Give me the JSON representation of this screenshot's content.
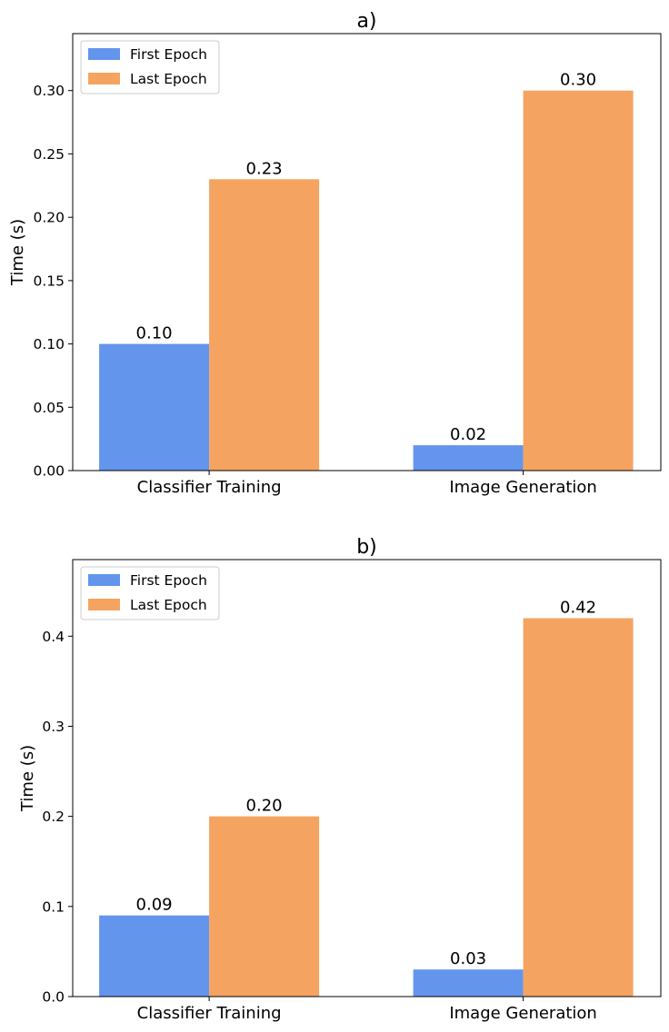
{
  "chart_data": [
    {
      "type": "bar",
      "title": "a)",
      "categories": [
        "Classifier Training",
        "Image Generation"
      ],
      "series": [
        {
          "name": "First Epoch",
          "values": [
            0.1,
            0.02
          ],
          "labels": [
            "0.10",
            "0.02"
          ]
        },
        {
          "name": "Last Epoch",
          "values": [
            0.23,
            0.3
          ],
          "labels": [
            "0.23",
            "0.30"
          ]
        }
      ],
      "xlabel": "",
      "ylabel": "Time (s)",
      "ylim": [
        0,
        0.345
      ],
      "yticks": [
        0,
        0.05,
        0.1,
        0.15,
        0.2,
        0.25,
        0.3
      ],
      "ytick_labels": [
        "0.00",
        "0.05",
        "0.10",
        "0.15",
        "0.20",
        "0.25",
        "0.30"
      ],
      "grid": false,
      "legend_position": "top-left"
    },
    {
      "type": "bar",
      "title": "b)",
      "categories": [
        "Classifier Training",
        "Image Generation"
      ],
      "series": [
        {
          "name": "First Epoch",
          "values": [
            0.09,
            0.03
          ],
          "labels": [
            "0.09",
            "0.03"
          ]
        },
        {
          "name": "Last Epoch",
          "values": [
            0.2,
            0.42
          ],
          "labels": [
            "0.20",
            "0.42"
          ]
        }
      ],
      "xlabel": "",
      "ylabel": "Time (s)",
      "ylim": [
        0,
        0.485
      ],
      "yticks": [
        0,
        0.1,
        0.2,
        0.3,
        0.4
      ],
      "ytick_labels": [
        "0.0",
        "0.1",
        "0.2",
        "0.3",
        "0.4"
      ],
      "grid": false,
      "legend_position": "top-left"
    }
  ],
  "colors": {
    "first_epoch": "#6495ED",
    "last_epoch": "#F4A460",
    "axis": "#000000",
    "legend_border": "#cccccc"
  }
}
